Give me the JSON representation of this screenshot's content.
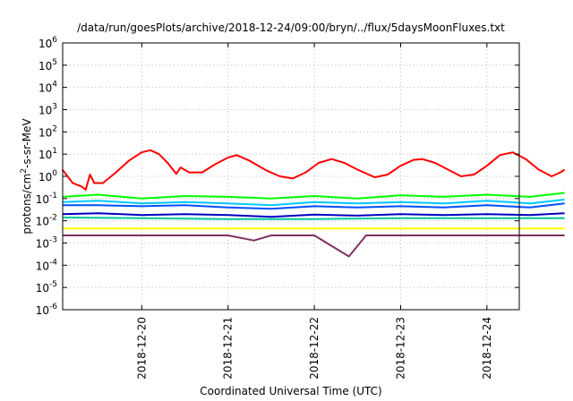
{
  "chart_data": {
    "type": "line",
    "title": "/data/run/goesPlots/archive/2018-12-24/09:00/bryn/../flux/5daysMoonFluxes.txt",
    "xlabel": "Coordinated Universal Time (UTC)",
    "ylabel": {
      "prefix": "protons/cm",
      "sup": "2",
      "suffix": "-s-sr-MeV"
    },
    "y_scale": "log",
    "ylim": [
      1e-06,
      1000000.0
    ],
    "y_ticks": [
      {
        "value": -6,
        "base": "10",
        "exp": "-6"
      },
      {
        "value": -5,
        "base": "10",
        "exp": "-5"
      },
      {
        "value": -4,
        "base": "10",
        "exp": "-4"
      },
      {
        "value": -3,
        "base": "10",
        "exp": "-3"
      },
      {
        "value": -2,
        "base": "10",
        "exp": "-2"
      },
      {
        "value": -1,
        "base": "10",
        "exp": "-1"
      },
      {
        "value": 0,
        "base": "10",
        "exp": "0"
      },
      {
        "value": 1,
        "base": "10",
        "exp": "1"
      },
      {
        "value": 2,
        "base": "10",
        "exp": "2"
      },
      {
        "value": 3,
        "base": "10",
        "exp": "3"
      },
      {
        "value": 4,
        "base": "10",
        "exp": "4"
      },
      {
        "value": 5,
        "base": "10",
        "exp": "5"
      },
      {
        "value": 6,
        "base": "10",
        "exp": "6"
      }
    ],
    "xlim": [
      "2018-12-19 02:00",
      "2018-12-24 09:00"
    ],
    "x_ticks": [
      "2018-12-20",
      "2018-12-21",
      "2018-12-22",
      "2018-12-23",
      "2018-12-24"
    ],
    "grid": true,
    "x_unit": "days since 2018-12-19 00:00",
    "series": [
      {
        "color": "#ff0000",
        "points": [
          [
            0.08,
            2.0
          ],
          [
            0.2,
            0.5
          ],
          [
            0.3,
            0.35
          ],
          [
            0.35,
            0.25
          ],
          [
            0.4,
            1.2
          ],
          [
            0.45,
            0.5
          ],
          [
            0.55,
            0.5
          ],
          [
            0.7,
            1.5
          ],
          [
            0.85,
            5
          ],
          [
            1.0,
            12
          ],
          [
            1.1,
            15
          ],
          [
            1.2,
            10
          ],
          [
            1.3,
            4
          ],
          [
            1.4,
            1.3
          ],
          [
            1.45,
            2.5
          ],
          [
            1.55,
            1.5
          ],
          [
            1.7,
            1.5
          ],
          [
            1.85,
            3.5
          ],
          [
            2.0,
            7
          ],
          [
            2.1,
            9
          ],
          [
            2.25,
            5
          ],
          [
            2.45,
            1.8
          ],
          [
            2.6,
            1.0
          ],
          [
            2.75,
            0.8
          ],
          [
            2.9,
            1.5
          ],
          [
            3.05,
            4
          ],
          [
            3.2,
            6
          ],
          [
            3.35,
            4
          ],
          [
            3.5,
            2
          ],
          [
            3.7,
            0.9
          ],
          [
            3.85,
            1.2
          ],
          [
            4.0,
            3
          ],
          [
            4.15,
            5.5
          ],
          [
            4.25,
            6
          ],
          [
            4.4,
            4
          ],
          [
            4.55,
            2
          ],
          [
            4.7,
            1.0
          ],
          [
            4.85,
            1.2
          ],
          [
            5.0,
            3
          ],
          [
            5.15,
            9
          ],
          [
            5.3,
            12
          ],
          [
            5.45,
            6
          ],
          [
            5.6,
            2
          ],
          [
            5.75,
            1.0
          ],
          [
            5.85,
            1.5
          ],
          [
            5.9,
            2.0
          ]
        ]
      },
      {
        "color": "#00ff00",
        "points": [
          [
            0.08,
            0.12
          ],
          [
            0.5,
            0.15
          ],
          [
            1.0,
            0.1
          ],
          [
            1.5,
            0.13
          ],
          [
            2.0,
            0.12
          ],
          [
            2.5,
            0.1
          ],
          [
            3.0,
            0.13
          ],
          [
            3.5,
            0.1
          ],
          [
            4.0,
            0.14
          ],
          [
            4.5,
            0.12
          ],
          [
            5.0,
            0.15
          ],
          [
            5.5,
            0.12
          ],
          [
            5.9,
            0.18
          ]
        ]
      },
      {
        "color": "#00c8ff",
        "points": [
          [
            0.08,
            0.07
          ],
          [
            0.5,
            0.08
          ],
          [
            1.0,
            0.06
          ],
          [
            1.5,
            0.07
          ],
          [
            2.0,
            0.06
          ],
          [
            2.5,
            0.05
          ],
          [
            3.0,
            0.07
          ],
          [
            3.5,
            0.06
          ],
          [
            4.0,
            0.07
          ],
          [
            4.5,
            0.06
          ],
          [
            5.0,
            0.08
          ],
          [
            5.5,
            0.06
          ],
          [
            5.9,
            0.09
          ]
        ]
      },
      {
        "color": "#0050ff",
        "points": [
          [
            0.08,
            0.05
          ],
          [
            0.5,
            0.05
          ],
          [
            1.0,
            0.045
          ],
          [
            1.5,
            0.05
          ],
          [
            2.0,
            0.04
          ],
          [
            2.5,
            0.035
          ],
          [
            3.0,
            0.045
          ],
          [
            3.5,
            0.04
          ],
          [
            4.0,
            0.045
          ],
          [
            4.5,
            0.04
          ],
          [
            5.0,
            0.05
          ],
          [
            5.5,
            0.04
          ],
          [
            5.9,
            0.06
          ]
        ]
      },
      {
        "color": "#00c8a0",
        "points": [
          [
            0.08,
            0.014
          ],
          [
            1.0,
            0.013
          ],
          [
            2.0,
            0.012
          ],
          [
            3.0,
            0.012
          ],
          [
            4.0,
            0.013
          ],
          [
            5.0,
            0.013
          ],
          [
            5.9,
            0.013
          ]
        ]
      },
      {
        "color": "#0000c0",
        "points": [
          [
            0.08,
            0.02
          ],
          [
            0.5,
            0.022
          ],
          [
            1.0,
            0.018
          ],
          [
            1.5,
            0.02
          ],
          [
            2.0,
            0.018
          ],
          [
            2.5,
            0.015
          ],
          [
            3.0,
            0.019
          ],
          [
            3.5,
            0.017
          ],
          [
            4.0,
            0.02
          ],
          [
            4.5,
            0.018
          ],
          [
            5.0,
            0.02
          ],
          [
            5.5,
            0.018
          ],
          [
            5.9,
            0.022
          ]
        ]
      },
      {
        "color": "#ffff00",
        "points": [
          [
            0.08,
            0.0045
          ],
          [
            1.0,
            0.0045
          ],
          [
            2.0,
            0.0045
          ],
          [
            3.0,
            0.0045
          ],
          [
            4.0,
            0.0045
          ],
          [
            5.0,
            0.0045
          ],
          [
            5.9,
            0.0045
          ]
        ]
      },
      {
        "color": "#803060",
        "points": [
          [
            0.08,
            0.0022
          ],
          [
            1.0,
            0.0022
          ],
          [
            2.0,
            0.0022
          ],
          [
            2.3,
            0.0013
          ],
          [
            2.5,
            0.0022
          ],
          [
            3.0,
            0.0022
          ],
          [
            3.4,
            0.00025
          ],
          [
            3.6,
            0.0022
          ],
          [
            4.0,
            0.0022
          ],
          [
            5.0,
            0.0022
          ],
          [
            5.9,
            0.0022
          ]
        ]
      }
    ]
  }
}
